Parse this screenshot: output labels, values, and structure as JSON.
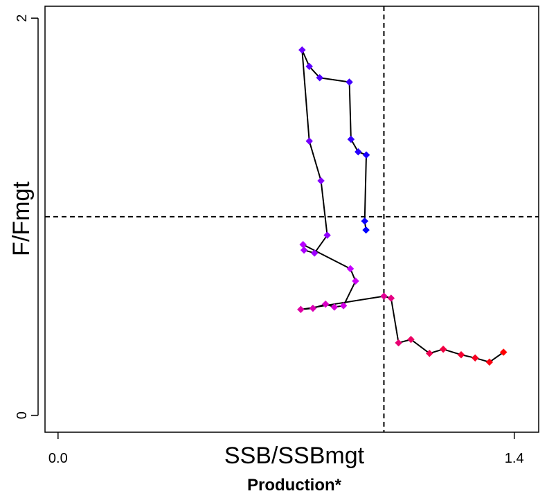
{
  "chart_data": {
    "type": "line",
    "title": "",
    "caption": "Production*",
    "xlabel": "SSB/SSBmgt",
    "ylabel": "F/Fmgt",
    "xlim": [
      -0.04,
      1.475
    ],
    "ylim": [
      -0.085,
      2.06
    ],
    "xticks": [
      {
        "value": 0.0,
        "label": "0.0"
      },
      {
        "value": 1.4,
        "label": "1.4"
      }
    ],
    "yticks": [
      {
        "value": 0,
        "label": "0"
      },
      {
        "value": 2,
        "label": "2"
      }
    ],
    "reference_lines": {
      "x": 1.0,
      "y": 1.0,
      "style": "dashed"
    },
    "grid": false,
    "legend": "none",
    "color_gradient": {
      "start": "#0000ff",
      "middle": "#cc00ff",
      "end": "#ff0000"
    },
    "series": [
      {
        "x": [
          0.945,
          0.941,
          0.946,
          0.921,
          0.899,
          0.894,
          0.803,
          0.771,
          0.749,
          0.771,
          0.807,
          0.826,
          0.787,
          0.755,
          0.752,
          0.897,
          0.913,
          0.876,
          0.848,
          0.821,
          0.782,
          0.745,
          1.0,
          1.022,
          1.045,
          1.083,
          1.14,
          1.182,
          1.237,
          1.28,
          1.324,
          1.367
        ],
        "y": [
          0.933,
          0.978,
          1.311,
          1.327,
          1.39,
          1.678,
          1.7,
          1.757,
          1.84,
          1.381,
          1.181,
          0.907,
          0.817,
          0.832,
          0.86,
          0.738,
          0.676,
          0.552,
          0.545,
          0.56,
          0.539,
          0.533,
          0.6,
          0.59,
          0.365,
          0.382,
          0.312,
          0.333,
          0.305,
          0.289,
          0.268,
          0.318
        ]
      }
    ]
  }
}
